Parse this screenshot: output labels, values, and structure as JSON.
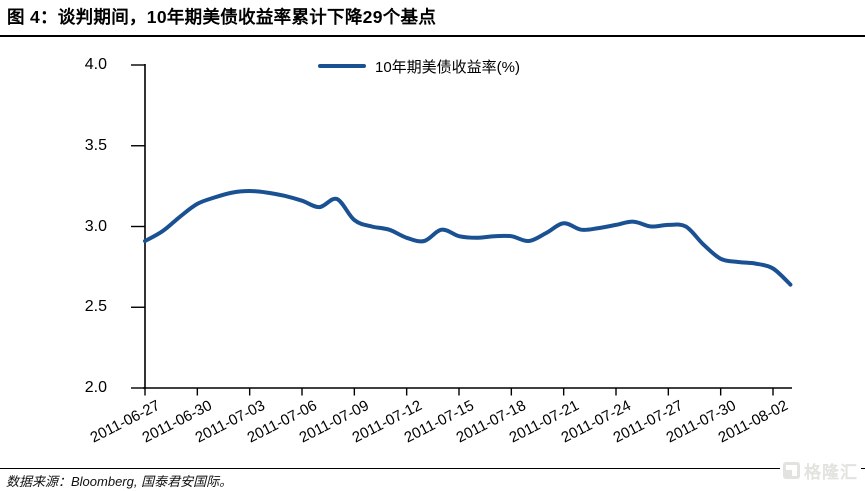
{
  "page": {
    "title": "图 4：谈判期间，10年期美债收益率累计下降29个基点",
    "source_note": "数据来源：Bloomberg, 国泰君安国际。",
    "watermark_text": "格隆汇"
  },
  "colors": {
    "line": "#1A5193",
    "axis": "#000000",
    "text": "#000000",
    "watermark": "#E2E2DF",
    "background": "#FFFFFF"
  },
  "chart_data": {
    "type": "line",
    "title": "",
    "legend": [
      {
        "label": "10年期美债收益率(%)",
        "color": "#1A5193"
      }
    ],
    "legend_position": "top-center",
    "grid": false,
    "ylim": [
      2.0,
      4.0
    ],
    "ytick_values": [
      4.0,
      3.5,
      3.0,
      2.5,
      2.0
    ],
    "ytick_labels": [
      "4.0",
      "3.5",
      "3.0",
      "2.5",
      "2.0"
    ],
    "xtick_labels": [
      "2011-06-27",
      "2011-06-30",
      "2011-07-03",
      "2011-07-06",
      "2011-07-09",
      "2011-07-12",
      "2011-07-15",
      "2011-07-18",
      "2011-07-21",
      "2011-07-24",
      "2011-07-27",
      "2011-07-30",
      "2011-08-02"
    ],
    "x": [
      "2011-06-27",
      "2011-06-28",
      "2011-06-29",
      "2011-06-30",
      "2011-07-01",
      "2011-07-02",
      "2011-07-03",
      "2011-07-04",
      "2011-07-05",
      "2011-07-06",
      "2011-07-07",
      "2011-07-08",
      "2011-07-09",
      "2011-07-10",
      "2011-07-11",
      "2011-07-12",
      "2011-07-13",
      "2011-07-14",
      "2011-07-15",
      "2011-07-16",
      "2011-07-17",
      "2011-07-18",
      "2011-07-19",
      "2011-07-20",
      "2011-07-21",
      "2011-07-22",
      "2011-07-23",
      "2011-07-24",
      "2011-07-25",
      "2011-07-26",
      "2011-07-27",
      "2011-07-28",
      "2011-07-29",
      "2011-07-30",
      "2011-07-31",
      "2011-08-01",
      "2011-08-02",
      "2011-08-03"
    ],
    "series": [
      {
        "name": "10年期美债收益率(%)",
        "values": [
          2.91,
          2.97,
          3.06,
          3.14,
          3.18,
          3.21,
          3.22,
          3.21,
          3.19,
          3.16,
          3.12,
          3.17,
          3.04,
          3.0,
          2.98,
          2.93,
          2.91,
          2.98,
          2.94,
          2.93,
          2.94,
          2.94,
          2.91,
          2.96,
          3.02,
          2.98,
          2.99,
          3.01,
          3.03,
          3.0,
          3.01,
          3.0,
          2.89,
          2.8,
          2.78,
          2.77,
          2.74,
          2.64
        ]
      }
    ]
  }
}
